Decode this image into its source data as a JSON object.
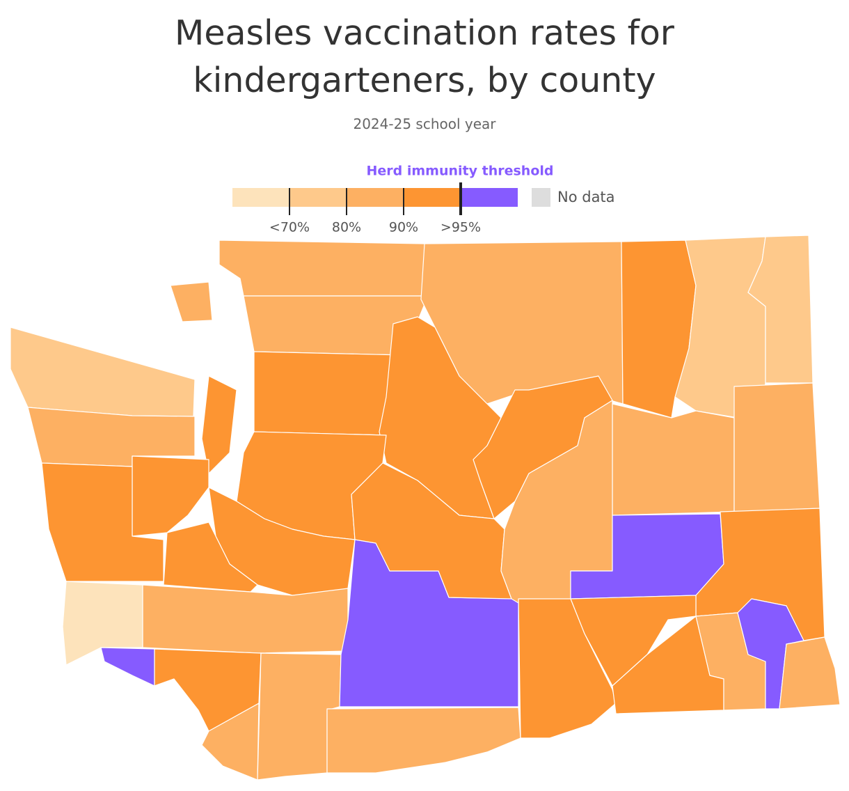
{
  "title": "Measles vaccination rates for kindergarteners, by county",
  "subtitle": "2024-25 school year",
  "legend": {
    "title": "Herd immunity threshold",
    "bins": [
      "#fde3bb",
      "#fec98b",
      "#fdb062",
      "#fd9532",
      "#865bff"
    ],
    "ticks": [
      "<70%",
      "80%",
      "90%",
      ">95%"
    ],
    "no_data": {
      "label": "No data",
      "color": "#dddddd"
    }
  }
}
